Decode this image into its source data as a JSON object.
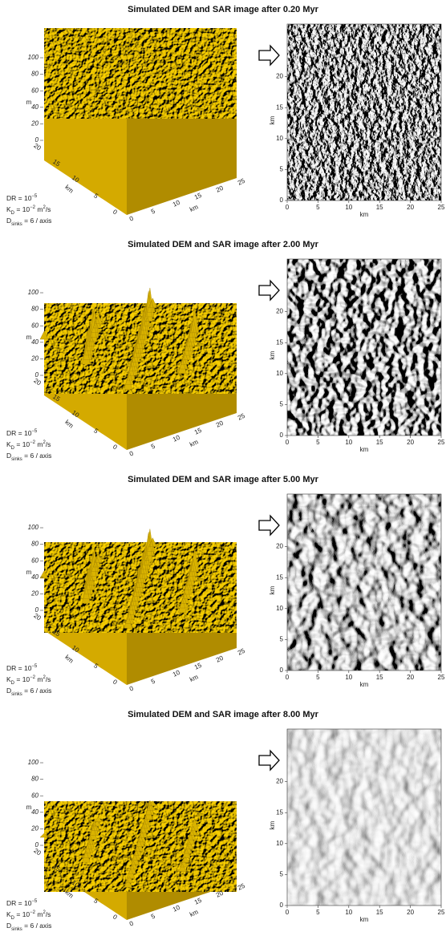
{
  "panels": [
    {
      "title": "Simulated DEM and SAR image after 0.20 Myr"
    },
    {
      "title": "Simulated DEM and SAR image after 2.00 Myr"
    },
    {
      "title": "Simulated DEM and SAR image after 5.00 Myr"
    },
    {
      "title": "Simulated DEM and SAR image after 8.00 Myr"
    }
  ],
  "dem_axes": {
    "z_label": "m",
    "z_ticks": [
      "100",
      "80",
      "60",
      "40",
      "20",
      "0"
    ],
    "y_label": "km",
    "y_ticks": [
      "20",
      "15",
      "10",
      "5",
      "0"
    ],
    "x_label": "km",
    "x_ticks": [
      "0",
      "5",
      "10",
      "15",
      "20",
      "25"
    ]
  },
  "params": {
    "dr": {
      "text": "DR = 10",
      "exp": "−5"
    },
    "kd": {
      "symbol": "K",
      "sub": "D",
      "text": " = 10",
      "exp": "−2",
      "unit": " m",
      "unit_exp": "2",
      "tail": "/s"
    },
    "ds": {
      "symbol": "D",
      "sub": "sinks",
      "text": " = 6 / axis"
    }
  },
  "sar_axes": {
    "y_label": "km",
    "y_ticks": [
      "0",
      "5",
      "10",
      "15",
      "20"
    ],
    "x_label": "km",
    "x_ticks": [
      "0",
      "5",
      "10",
      "15",
      "20",
      "25"
    ]
  }
}
